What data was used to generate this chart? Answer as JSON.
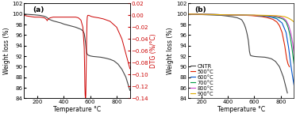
{
  "panel_a": {
    "tga_x": [
      100,
      120,
      150,
      180,
      200,
      220,
      250,
      270,
      280,
      290,
      300,
      320,
      350,
      380,
      400,
      430,
      460,
      490,
      510,
      530,
      545,
      555,
      560,
      565,
      568,
      570,
      572,
      575,
      578,
      580,
      582,
      585,
      590,
      595,
      600,
      610,
      620,
      640,
      660,
      680,
      700,
      720,
      750,
      780,
      810,
      840,
      870,
      900
    ],
    "tga_y": [
      100.0,
      99.95,
      99.9,
      99.85,
      99.8,
      99.75,
      99.6,
      99.4,
      99.2,
      99.0,
      98.9,
      98.7,
      98.5,
      98.3,
      98.1,
      97.9,
      97.7,
      97.5,
      97.3,
      97.1,
      96.8,
      96.3,
      95.5,
      94.5,
      93.8,
      93.2,
      92.8,
      92.5,
      92.4,
      92.3,
      92.25,
      92.2,
      92.15,
      92.1,
      92.05,
      92.0,
      91.95,
      91.9,
      91.85,
      91.8,
      91.7,
      91.6,
      91.4,
      91.1,
      90.5,
      89.5,
      88.0,
      85.5
    ],
    "dtg_x": [
      100,
      120,
      150,
      180,
      200,
      220,
      250,
      260,
      270,
      275,
      280,
      290,
      300,
      320,
      350,
      380,
      400,
      430,
      460,
      490,
      510,
      530,
      545,
      555,
      558,
      560,
      562,
      565,
      567,
      568,
      570,
      572,
      574,
      576,
      578,
      580,
      582,
      585,
      590,
      600,
      610,
      630,
      660,
      700,
      750,
      800,
      840,
      870,
      900
    ],
    "dtg_y": [
      0.0,
      -0.001,
      -0.002,
      -0.003,
      -0.003,
      -0.003,
      -0.004,
      -0.005,
      -0.007,
      -0.009,
      -0.007,
      -0.005,
      -0.004,
      -0.003,
      -0.003,
      -0.003,
      -0.003,
      -0.003,
      -0.003,
      -0.003,
      -0.004,
      -0.008,
      -0.02,
      -0.055,
      -0.09,
      -0.12,
      -0.135,
      -0.14,
      -0.135,
      -0.12,
      -0.09,
      -0.06,
      -0.03,
      -0.01,
      -0.003,
      -0.001,
      0.0,
      0.0,
      0.0,
      -0.001,
      -0.002,
      -0.003,
      -0.004,
      -0.006,
      -0.01,
      -0.02,
      -0.04,
      -0.065,
      -0.09
    ],
    "tga_color": "#444444",
    "dtg_color": "#cc0000",
    "xlabel": "Temperature °C",
    "ylabel_left": "Weight loss (%)",
    "ylabel_right": "DTG (%/°C)",
    "xlim": [
      100,
      900
    ],
    "ylim_left": [
      84,
      102
    ],
    "ylim_right": [
      -0.14,
      0.02
    ],
    "yticks_left": [
      84,
      86,
      88,
      90,
      92,
      94,
      96,
      98,
      100,
      102
    ],
    "yticks_right": [
      -0.14,
      -0.12,
      -0.1,
      -0.08,
      -0.06,
      -0.04,
      -0.02,
      0.0,
      0.02
    ],
    "xticks": [
      200,
      400,
      600,
      800
    ],
    "label": "(a)"
  },
  "panel_b": {
    "lines": [
      {
        "label": "CNTR",
        "color": "#444444",
        "x": [
          100,
          150,
          200,
          250,
          300,
          350,
          400,
          430,
          450,
          470,
          490,
          505,
          515,
          525,
          535,
          545,
          555,
          560,
          563,
          566,
          568,
          570,
          575,
          580,
          590,
          600,
          620,
          650,
          680,
          700,
          730,
          760,
          790,
          820,
          850
        ],
        "y": [
          100.0,
          99.95,
          99.9,
          99.85,
          99.8,
          99.75,
          99.6,
          99.5,
          99.4,
          99.3,
          99.1,
          98.9,
          98.5,
          98.0,
          97.3,
          96.3,
          95.0,
          93.8,
          93.0,
          92.6,
          92.4,
          92.2,
          92.1,
          92.05,
          92.0,
          91.95,
          91.9,
          91.85,
          91.8,
          91.7,
          91.5,
          91.0,
          90.0,
          88.0,
          85.0
        ]
      },
      {
        "label": "500°C",
        "color": "#dd2200",
        "x": [
          100,
          200,
          300,
          400,
          500,
          580,
          620,
          660,
          700,
          740,
          770,
          790,
          810,
          830,
          845,
          855,
          865
        ],
        "y": [
          100.0,
          99.95,
          99.9,
          99.85,
          99.8,
          99.7,
          99.6,
          99.5,
          99.3,
          99.0,
          98.5,
          97.8,
          96.5,
          94.0,
          91.5,
          90.5,
          90.0
        ]
      },
      {
        "label": "600°C",
        "color": "#0055cc",
        "x": [
          100,
          200,
          300,
          400,
          500,
          600,
          680,
          730,
          770,
          810,
          840,
          860,
          875,
          890,
          900
        ],
        "y": [
          100.0,
          99.95,
          99.9,
          99.85,
          99.8,
          99.75,
          99.6,
          99.4,
          99.1,
          98.3,
          96.5,
          93.5,
          90.5,
          88.0,
          86.5
        ]
      },
      {
        "label": "700°C",
        "color": "#009944",
        "x": [
          100,
          200,
          300,
          400,
          500,
          600,
          680,
          730,
          770,
          800,
          820,
          840,
          855,
          870,
          885,
          900
        ],
        "y": [
          100.0,
          99.95,
          99.9,
          99.85,
          99.8,
          99.75,
          99.65,
          99.55,
          99.4,
          99.2,
          99.0,
          98.5,
          97.5,
          96.0,
          93.5,
          90.5
        ]
      },
      {
        "label": "800°C",
        "color": "#cc44cc",
        "x": [
          100,
          200,
          300,
          400,
          500,
          600,
          680,
          730,
          770,
          800,
          820,
          840,
          860,
          875,
          890,
          900
        ],
        "y": [
          100.0,
          99.95,
          99.9,
          99.85,
          99.8,
          99.75,
          99.7,
          99.65,
          99.55,
          99.4,
          99.2,
          98.8,
          97.8,
          96.5,
          94.5,
          92.5
        ]
      },
      {
        "label": "900°C",
        "color": "#ddaa00",
        "x": [
          100,
          200,
          300,
          400,
          500,
          600,
          680,
          730,
          770,
          800,
          830,
          860,
          880,
          900
        ],
        "y": [
          100.0,
          99.95,
          99.9,
          99.85,
          99.82,
          99.8,
          99.75,
          99.72,
          99.68,
          99.6,
          99.5,
          99.2,
          98.9,
          98.5
        ]
      }
    ],
    "xlabel": "Temperature °C",
    "ylabel": "Weight loss (%)",
    "xlim": [
      100,
      900
    ],
    "ylim": [
      84,
      102
    ],
    "yticks": [
      84,
      86,
      88,
      90,
      92,
      94,
      96,
      98,
      100,
      102
    ],
    "xticks": [
      200,
      400,
      600,
      800
    ],
    "label": "(b)"
  },
  "bg_color": "#ffffff",
  "tick_labelsize": 5,
  "axis_labelsize": 5.5,
  "legend_fontsize": 4.8
}
